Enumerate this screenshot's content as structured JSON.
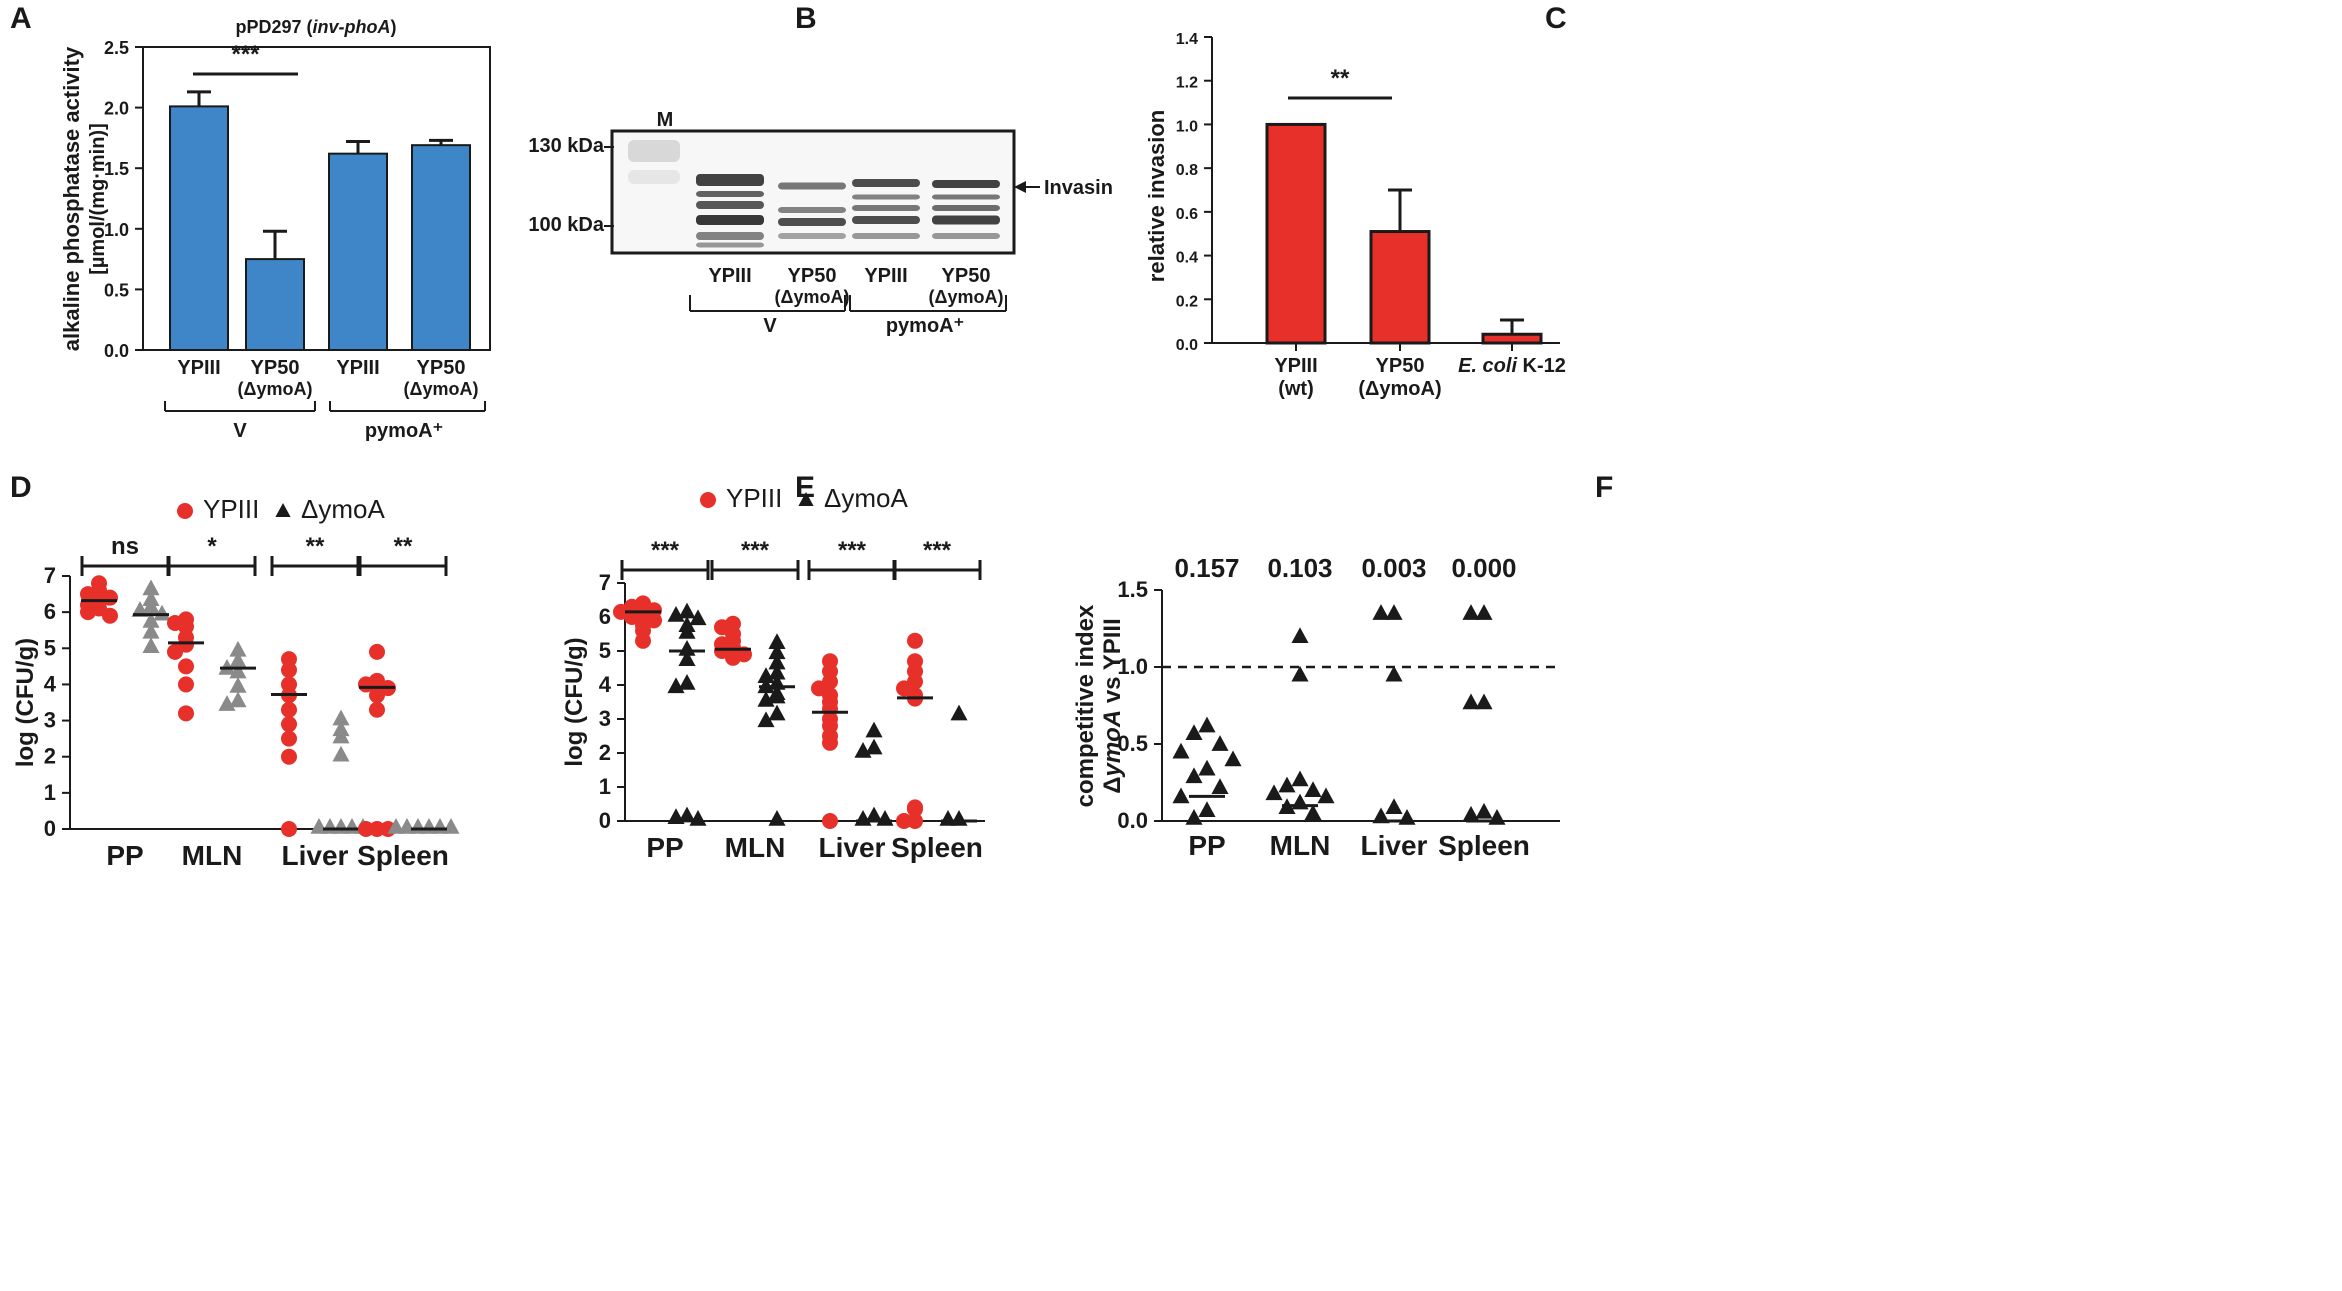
{
  "colors": {
    "blue": "#3f86c9",
    "red": "#e8302a",
    "gray": "#8a8a8a",
    "black": "#1a1a1a"
  },
  "chart_data": [
    {
      "panel": "A",
      "type": "bar",
      "title_a": "pPD297 (",
      "title_b": "inv-phoA",
      "title_c": ")",
      "ylabel": "alkaline phosphatase activity",
      "ylabel2": "[µmol/(mg·min)]",
      "ylim": [
        0,
        2.5
      ],
      "yticks": [
        "0.0",
        "0.5",
        "1.0",
        "1.5",
        "2.0",
        "2.5"
      ],
      "categories": [
        "YPIII",
        "YP50",
        "YPIII",
        "YP50"
      ],
      "sub": [
        "",
        "(ΔymoA)",
        "",
        "(ΔymoA)"
      ],
      "values": [
        2.01,
        0.75,
        1.62,
        1.69
      ],
      "errors": [
        0.12,
        0.23,
        0.1,
        0.04
      ],
      "groups": [
        "V",
        "pymoA⁺"
      ],
      "significance": "***"
    },
    {
      "panel": "B",
      "type": "blot",
      "markers": [
        "130 kDa",
        "100 kDa"
      ],
      "lane_m": "M",
      "band_label": "Invasin",
      "lanes": [
        "YPIII",
        "YP50",
        "YPIII",
        "YP50"
      ],
      "sub": [
        "",
        "(ΔymoA)",
        "",
        "(ΔymoA)"
      ],
      "groups": [
        "V",
        "pymoA⁺"
      ]
    },
    {
      "panel": "C",
      "type": "bar",
      "ylabel": "relative invasion",
      "ylim": [
        0,
        1.4
      ],
      "yticks": [
        "0.0",
        "0.2",
        "0.4",
        "0.6",
        "0.8",
        "1.0",
        "1.2",
        "1.4"
      ],
      "categories": [
        "YPIII",
        "YP50",
        "E. coli"
      ],
      "cat3_suffix": " K-12",
      "sub": [
        "(wt)",
        "(ΔymoA)",
        ""
      ],
      "values": [
        1.0,
        0.51,
        0.04
      ],
      "errors": [
        0,
        0.19,
        0.065
      ],
      "significance": "**"
    },
    {
      "panel": "D",
      "type": "scatter",
      "ylabel": "log (CFU/g)",
      "ylim": [
        0,
        7
      ],
      "yticks": [
        "0",
        "1",
        "2",
        "3",
        "4",
        "5",
        "6",
        "7"
      ],
      "categories": [
        "PP",
        "MLN",
        "Liver",
        "Spleen"
      ],
      "legend": [
        "YPIII",
        "ΔymoA"
      ],
      "significance": [
        "ns",
        "*",
        "**",
        "**"
      ],
      "YPIII": [
        [
          6.8,
          6.6,
          6.5,
          6.4,
          6.3,
          6.2,
          6.1,
          6.0,
          5.9
        ],
        [
          5.8,
          5.7,
          5.6,
          5.3,
          5.1,
          4.9,
          4.5,
          4.0,
          3.2
        ],
        [
          4.7,
          4.4,
          4.0,
          3.7,
          3.3,
          2.9,
          2.5,
          2.0,
          0
        ],
        [
          4.9,
          4.1,
          4.0,
          3.9,
          3.7,
          3.3,
          0,
          0,
          0
        ]
      ],
      "ymoA": [
        [
          6.6,
          6.3,
          6.1,
          6.0,
          5.9,
          5.7,
          5.4,
          5.0
        ],
        [
          4.9,
          4.6,
          4.4,
          4.3,
          3.9,
          3.5,
          3.4
        ],
        [
          3.0,
          2.7,
          2.5,
          2.0,
          0,
          0,
          0,
          0,
          0
        ],
        [
          0,
          0,
          0,
          0,
          0,
          0
        ]
      ],
      "medians": [
        [
          6.32,
          5.93
        ],
        [
          5.15,
          4.45
        ],
        [
          3.72,
          0
        ],
        [
          3.92,
          0
        ]
      ]
    },
    {
      "panel": "E",
      "type": "scatter",
      "ylabel": "log (CFU/g)",
      "ylim": [
        0,
        7
      ],
      "yticks": [
        "0",
        "1",
        "2",
        "3",
        "4",
        "5",
        "6",
        "7"
      ],
      "categories": [
        "PP",
        "MLN",
        "Liver",
        "Spleen"
      ],
      "legend": [
        "YPIII",
        "ΔymoA"
      ],
      "significance": [
        "***",
        "***",
        "***",
        "***"
      ],
      "YPIII": [
        [
          6.4,
          6.35,
          6.3,
          6.2,
          6.15,
          6.1,
          6.0,
          5.9,
          5.75,
          5.6,
          5.3
        ],
        [
          5.8,
          5.7,
          5.5,
          5.3,
          5.2,
          5.1,
          5.0,
          4.9,
          4.8
        ],
        [
          4.7,
          4.4,
          4.1,
          3.9,
          3.7,
          3.5,
          3.3,
          3.0,
          2.8,
          2.5,
          2.3,
          0
        ],
        [
          5.3,
          4.7,
          4.4,
          4.1,
          3.9,
          3.7,
          3.6,
          0.4,
          0.35,
          0,
          0
        ]
      ],
      "ymoA": [
        [
          6.1,
          6.0,
          5.9,
          5.7,
          5.5,
          5.0,
          4.7,
          4.0,
          3.9,
          0.1,
          0.05,
          0
        ],
        [
          5.2,
          4.9,
          4.6,
          4.3,
          4.2,
          4.0,
          3.9,
          3.7,
          3.6,
          3.5,
          3.1,
          2.9,
          0
        ],
        [
          2.6,
          2.1,
          2.0,
          0.1,
          0,
          0
        ],
        [
          3.1,
          0,
          0
        ]
      ],
      "medians": [
        [
          6.15,
          5.0
        ],
        [
          5.05,
          3.95
        ],
        [
          3.2,
          0
        ],
        [
          3.62,
          0
        ]
      ]
    },
    {
      "panel": "F",
      "type": "scatter",
      "ylabel": "competitive index",
      "ylabel2_pre": "Δ",
      "ylabel2_it": "ymoA",
      "ylabel2_post": " vs YPIII",
      "ylim": [
        0,
        1.5
      ],
      "yticks": [
        "0.0",
        "0.5",
        "1.0",
        "1.5"
      ],
      "reference_line": 1.0,
      "categories": [
        "PP",
        "MLN",
        "Liver",
        "Spleen"
      ],
      "pvalues": [
        "0.157",
        "0.103",
        "0.003",
        "0.000"
      ],
      "values": [
        [
          0.6,
          0.55,
          0.48,
          0.43,
          0.38,
          0.32,
          0.27,
          0.2,
          0.14,
          0.05,
          0.0
        ],
        [
          1.18,
          0.93,
          0.25,
          0.21,
          0.18,
          0.16,
          0.14,
          0.1,
          0.07,
          0.03
        ],
        [
          1.33,
          1.33,
          0.93,
          0.07,
          0.01,
          0.0
        ],
        [
          1.33,
          1.33,
          0.75,
          0.75,
          0.04,
          0.02,
          0.0
        ]
      ],
      "medians": [
        0.16,
        0.1,
        0.0,
        0.0
      ]
    }
  ],
  "panel_labels": [
    "A",
    "B",
    "C",
    "D",
    "E",
    "F"
  ]
}
